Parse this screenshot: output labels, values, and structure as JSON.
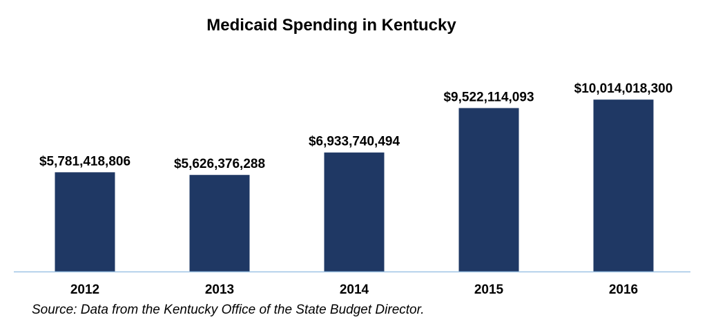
{
  "chart_data": {
    "type": "bar",
    "title": "Medicaid Spending in Kentucky",
    "categories": [
      "2012",
      "2013",
      "2014",
      "2015",
      "2016"
    ],
    "values": [
      5781418806,
      5626376288,
      6933740494,
      9522114093,
      10014018300
    ],
    "data_labels": [
      "$5,781,418,806",
      "$5,626,376,288",
      "$6,933,740,494",
      "$9,522,114,093",
      "$10,014,018,300"
    ],
    "ylim": [
      0,
      13000000000
    ],
    "grid": false,
    "legend": "none",
    "colors": {
      "bar": "#1f3864",
      "axis": "#9dc3e6"
    }
  },
  "source_note": "Source: Data from the Kentucky Office of the State Budget Director."
}
